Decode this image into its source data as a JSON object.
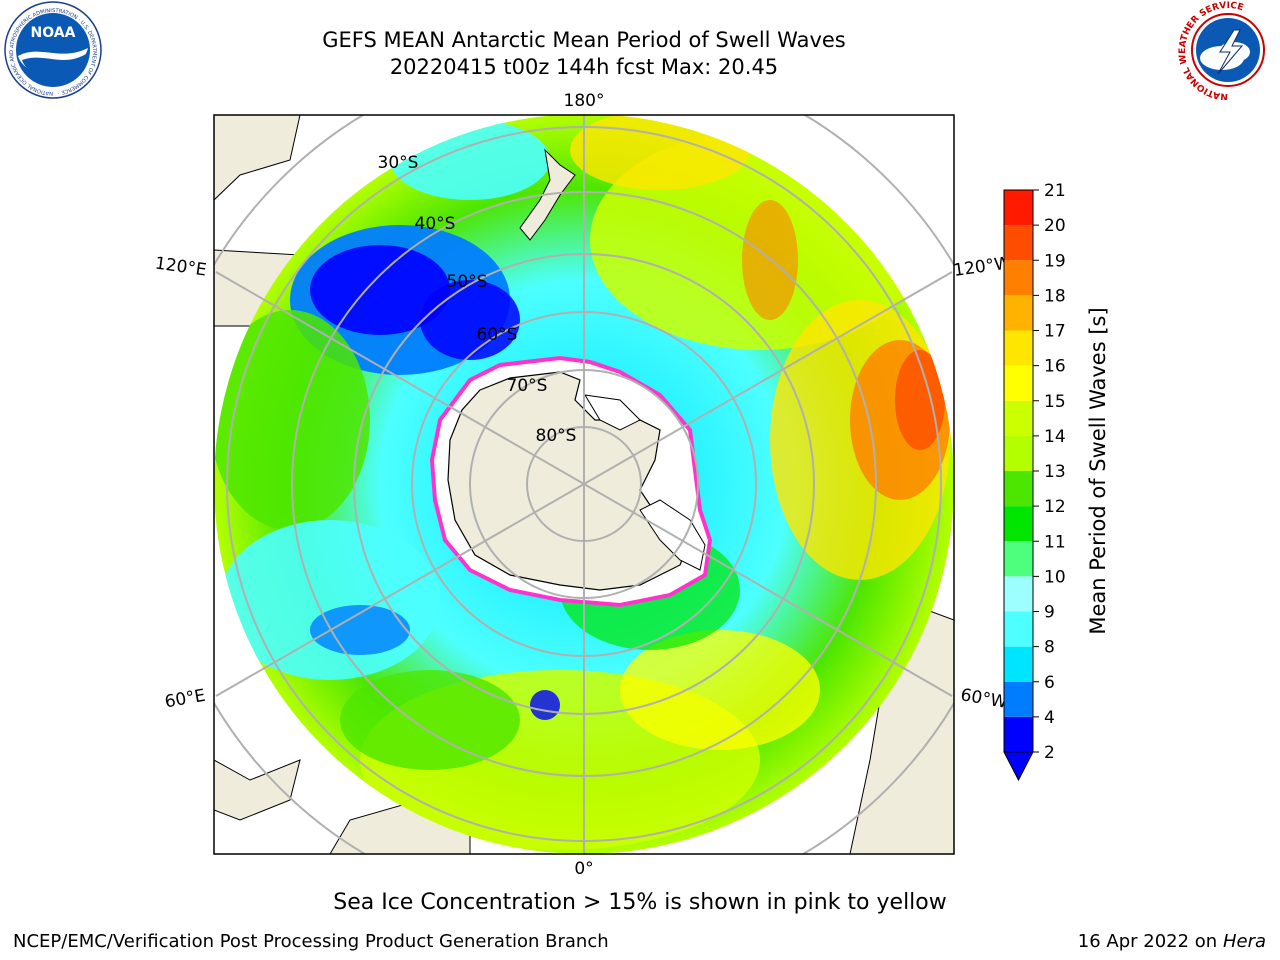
{
  "header": {
    "title_line1": "GEFS MEAN Antarctic Mean Period of Swell Waves",
    "title_line2": "20220415 t00z 144h fcst   Max: 20.45"
  },
  "map": {
    "graticule_labels": {
      "lon_180": "180°",
      "lon_0": "0°",
      "lon_120E": "120°E",
      "lon_120W": "120°W",
      "lon_60E": "60°E",
      "lon_60W": "60°W",
      "lat_30S": "30°S",
      "lat_40S": "40°S",
      "lat_50S": "50°S",
      "lat_60S": "60°S",
      "lat_70S": "70°S",
      "lat_80S": "80°S"
    }
  },
  "colorbar": {
    "label": "Mean Period of Swell Waves [s]",
    "ticks": [
      "2",
      "4",
      "6",
      "8",
      "9",
      "10",
      "11",
      "12",
      "13",
      "14",
      "15",
      "16",
      "17",
      "18",
      "19",
      "20",
      "21"
    ],
    "colors": [
      "#0000ff",
      "#007dff",
      "#00e5ff",
      "#4dffff",
      "#9dffff",
      "#4dff7d",
      "#00e600",
      "#4de600",
      "#b3ff00",
      "#ccff00",
      "#ffff00",
      "#ffe600",
      "#ffb300",
      "#ff8000",
      "#ff4d00",
      "#ff1a00"
    ]
  },
  "caption": "Sea Ice Concentration > 15% is shown in pink to yellow",
  "footer": {
    "left": "NCEP/EMC/Verification Post Processing Product Generation Branch",
    "right_date": "16 Apr 2022 on ",
    "right_host": "Hera"
  },
  "logos": {
    "noaa_text": "NOAA",
    "noaa_ring": "NATIONAL OCEANIC AND ATMOSPHERIC ADMINISTRATION · U.S. DEPARTMENT OF COMMERCE ·",
    "nws_ring": "NATIONAL WEATHER SERVICE"
  },
  "icons": {
    "noaa": "noaa-logo-icon",
    "nws": "nws-logo-icon"
  }
}
